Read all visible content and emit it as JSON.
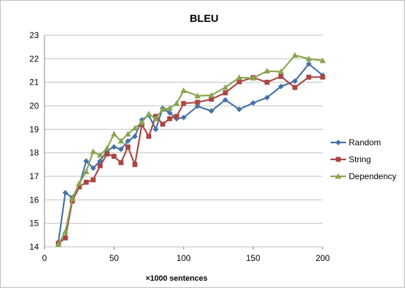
{
  "chart_data": {
    "type": "line",
    "title": "BLEU",
    "xlabel": "×1000 sentences",
    "ylabel": "",
    "xlim": [
      0,
      200
    ],
    "ylim": [
      14,
      23
    ],
    "xticks": [
      0,
      50,
      100,
      150,
      200
    ],
    "yticks": [
      14,
      15,
      16,
      17,
      18,
      19,
      20,
      21,
      22,
      23
    ],
    "grid": "horizontal",
    "legend_position": "right",
    "series": [
      {
        "name": "Random",
        "color": "#4572a7",
        "marker": "diamond",
        "points": [
          [
            10,
            14.2
          ],
          [
            15,
            16.3
          ],
          [
            20,
            16.1
          ],
          [
            25,
            16.6
          ],
          [
            30,
            17.65
          ],
          [
            35,
            17.35
          ],
          [
            40,
            17.65
          ],
          [
            45,
            18.1
          ],
          [
            50,
            18.25
          ],
          [
            55,
            18.15
          ],
          [
            60,
            18.5
          ],
          [
            65,
            18.7
          ],
          [
            70,
            19.4
          ],
          [
            75,
            19.6
          ],
          [
            80,
            19.0
          ],
          [
            85,
            19.9
          ],
          [
            90,
            19.7
          ],
          [
            95,
            19.45
          ],
          [
            100,
            19.5
          ],
          [
            110,
            19.98
          ],
          [
            120,
            19.78
          ],
          [
            130,
            20.25
          ],
          [
            140,
            19.85
          ],
          [
            150,
            20.12
          ],
          [
            160,
            20.35
          ],
          [
            170,
            20.82
          ],
          [
            180,
            21.05
          ],
          [
            190,
            21.78
          ],
          [
            200,
            21.3
          ]
        ]
      },
      {
        "name": "String",
        "color": "#aa4643",
        "marker": "square",
        "points": [
          [
            10,
            14.15
          ],
          [
            15,
            14.38
          ],
          [
            20,
            15.95
          ],
          [
            25,
            16.55
          ],
          [
            30,
            16.75
          ],
          [
            35,
            16.85
          ],
          [
            40,
            17.45
          ],
          [
            45,
            17.95
          ],
          [
            50,
            17.85
          ],
          [
            55,
            17.58
          ],
          [
            60,
            18.25
          ],
          [
            65,
            17.5
          ],
          [
            70,
            19.2
          ],
          [
            75,
            18.7
          ],
          [
            80,
            19.55
          ],
          [
            85,
            19.22
          ],
          [
            90,
            19.45
          ],
          [
            95,
            19.55
          ],
          [
            100,
            20.1
          ],
          [
            110,
            20.15
          ],
          [
            120,
            20.28
          ],
          [
            130,
            20.55
          ],
          [
            140,
            21.02
          ],
          [
            150,
            21.2
          ],
          [
            160,
            21.0
          ],
          [
            170,
            21.25
          ],
          [
            180,
            20.78
          ],
          [
            190,
            21.22
          ],
          [
            200,
            21.22
          ]
        ]
      },
      {
        "name": "Dependency",
        "color": "#89a54e",
        "marker": "triangle",
        "points": [
          [
            10,
            14.1
          ],
          [
            15,
            14.65
          ],
          [
            20,
            16.05
          ],
          [
            25,
            16.7
          ],
          [
            30,
            17.2
          ],
          [
            35,
            18.05
          ],
          [
            40,
            17.9
          ],
          [
            45,
            18.2
          ],
          [
            50,
            18.8
          ],
          [
            55,
            18.5
          ],
          [
            60,
            18.8
          ],
          [
            65,
            19.05
          ],
          [
            70,
            19.3
          ],
          [
            75,
            19.65
          ],
          [
            80,
            19.45
          ],
          [
            85,
            19.85
          ],
          [
            90,
            19.9
          ],
          [
            95,
            20.1
          ],
          [
            100,
            20.65
          ],
          [
            110,
            20.42
          ],
          [
            120,
            20.45
          ],
          [
            130,
            20.78
          ],
          [
            140,
            21.2
          ],
          [
            150,
            21.18
          ],
          [
            160,
            21.48
          ],
          [
            170,
            21.45
          ],
          [
            180,
            22.15
          ],
          [
            190,
            22.0
          ],
          [
            200,
            21.92
          ]
        ]
      }
    ]
  }
}
